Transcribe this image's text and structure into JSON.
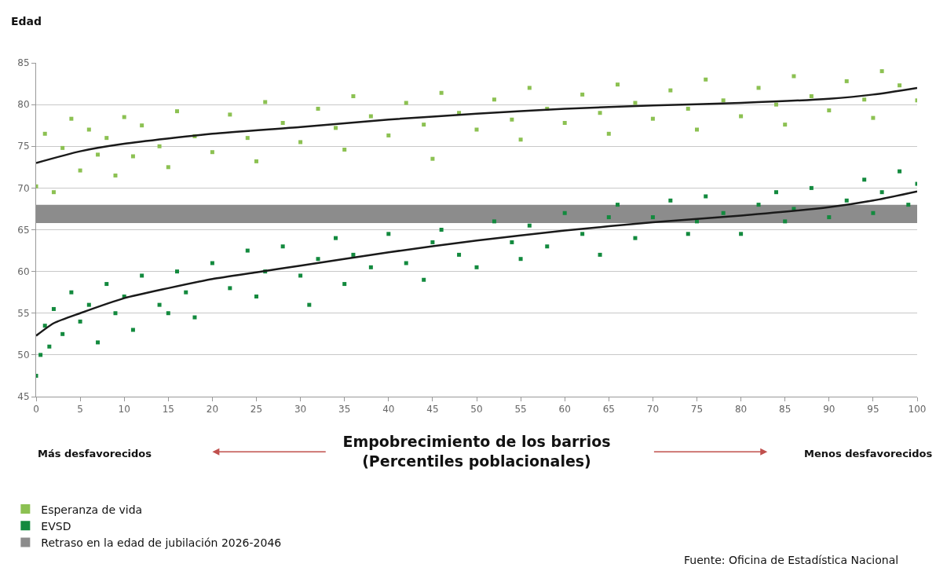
{
  "chart_data": {
    "type": "scatter",
    "xlabel": "Empobrecimiento de los barrios\n(Percentiles poblacionales)",
    "ylabel": "Edad",
    "xlim": [
      0,
      100
    ],
    "ylim": [
      45,
      85
    ],
    "xticks": [
      0,
      5,
      10,
      15,
      20,
      25,
      30,
      35,
      40,
      45,
      50,
      55,
      60,
      65,
      70,
      75,
      80,
      85,
      90,
      95,
      100
    ],
    "yticks": [
      45,
      50,
      55,
      60,
      65,
      70,
      75,
      80,
      85
    ],
    "grid": "y",
    "legend": "bottom left",
    "bands": [
      {
        "axis": "y",
        "from": 65.8,
        "to": 68,
        "label": "Retraso en la edad de jubilación 2026-2046",
        "color": "#8c8c8c"
      }
    ],
    "annotations": [
      "Más desfavorecidos",
      "Menos desfavorecidos",
      "Fuente: Oficina de Estadística Nacional"
    ],
    "series": [
      {
        "name": "Esperanza de vida",
        "marker": "square",
        "color": "#8cc152",
        "x": [
          0,
          1,
          2,
          3,
          4,
          5,
          6,
          7,
          8,
          9,
          10,
          11,
          12,
          14,
          15,
          16,
          18,
          20,
          22,
          24,
          25,
          26,
          28,
          30,
          32,
          34,
          35,
          36,
          38,
          40,
          42,
          44,
          45,
          46,
          48,
          50,
          52,
          54,
          55,
          56,
          58,
          60,
          62,
          64,
          65,
          66,
          68,
          70,
          72,
          74,
          75,
          76,
          78,
          80,
          82,
          84,
          85,
          86,
          88,
          90,
          92,
          94,
          95,
          96,
          98,
          100
        ],
        "values": [
          70.2,
          76.5,
          69.5,
          74.8,
          78.3,
          72.1,
          77,
          74,
          76,
          71.5,
          78.5,
          73.8,
          77.5,
          75,
          72.5,
          79.2,
          76.2,
          74.3,
          78.8,
          76,
          73.2,
          80.3,
          77.8,
          75.5,
          79.5,
          77.2,
          74.6,
          81,
          78.6,
          76.3,
          80.2,
          77.6,
          73.5,
          81.4,
          79,
          77,
          80.6,
          78.2,
          75.8,
          82,
          79.5,
          77.8,
          81.2,
          79,
          76.5,
          82.4,
          80.2,
          78.3,
          81.7,
          79.5,
          77,
          83,
          80.5,
          78.6,
          82,
          80,
          77.6,
          83.4,
          81,
          79.3,
          82.8,
          80.6,
          78.4,
          84,
          82.3,
          80.5
        ]
      },
      {
        "name": "EVSD",
        "marker": "square",
        "color": "#138a3e",
        "x": [
          0,
          0.5,
          1,
          1.5,
          2,
          3,
          4,
          5,
          6,
          7,
          8,
          9,
          10,
          11,
          12,
          14,
          15,
          16,
          17,
          18,
          20,
          22,
          24,
          25,
          26,
          28,
          30,
          31,
          32,
          34,
          35,
          36,
          38,
          40,
          42,
          44,
          45,
          46,
          48,
          50,
          52,
          54,
          55,
          56,
          58,
          60,
          62,
          64,
          65,
          66,
          68,
          70,
          72,
          74,
          75,
          76,
          78,
          80,
          82,
          84,
          85,
          86,
          88,
          90,
          92,
          94,
          95,
          96,
          98,
          99,
          100
        ],
        "values": [
          47.5,
          50,
          53.5,
          51,
          55.5,
          52.5,
          57.5,
          54,
          56,
          51.5,
          58.5,
          55,
          57,
          53,
          59.5,
          56,
          55,
          60,
          57.5,
          54.5,
          61,
          58,
          62.5,
          57,
          60,
          63,
          59.5,
          56,
          61.5,
          64,
          58.5,
          62,
          60.5,
          64.5,
          61,
          59,
          63.5,
          65,
          62,
          60.5,
          66,
          63.5,
          61.5,
          65.5,
          63,
          67,
          64.5,
          62,
          66.5,
          68,
          64,
          66.5,
          68.5,
          64.5,
          66,
          69,
          67,
          64.5,
          68,
          69.5,
          66,
          67.5,
          70,
          66.5,
          68.5,
          71,
          67,
          69.5,
          72,
          68,
          70.5
        ]
      },
      {
        "type": "line",
        "color": "#1a1a1a",
        "x": [
          0,
          5,
          10,
          20,
          30,
          40,
          50,
          60,
          70,
          80,
          90,
          95,
          100
        ],
        "values": [
          73,
          74.4,
          75.3,
          76.5,
          77.3,
          78.2,
          78.9,
          79.5,
          79.9,
          80.2,
          80.7,
          81.2,
          82
        ]
      },
      {
        "type": "line",
        "color": "#1a1a1a",
        "x": [
          0,
          2,
          5,
          10,
          15,
          20,
          25,
          30,
          40,
          50,
          60,
          70,
          80,
          90,
          95,
          100
        ],
        "values": [
          52.3,
          53.8,
          55,
          56.8,
          58,
          59.1,
          59.9,
          60.7,
          62.3,
          63.7,
          64.9,
          65.9,
          66.7,
          67.7,
          68.5,
          69.6
        ]
      }
    ]
  }
}
